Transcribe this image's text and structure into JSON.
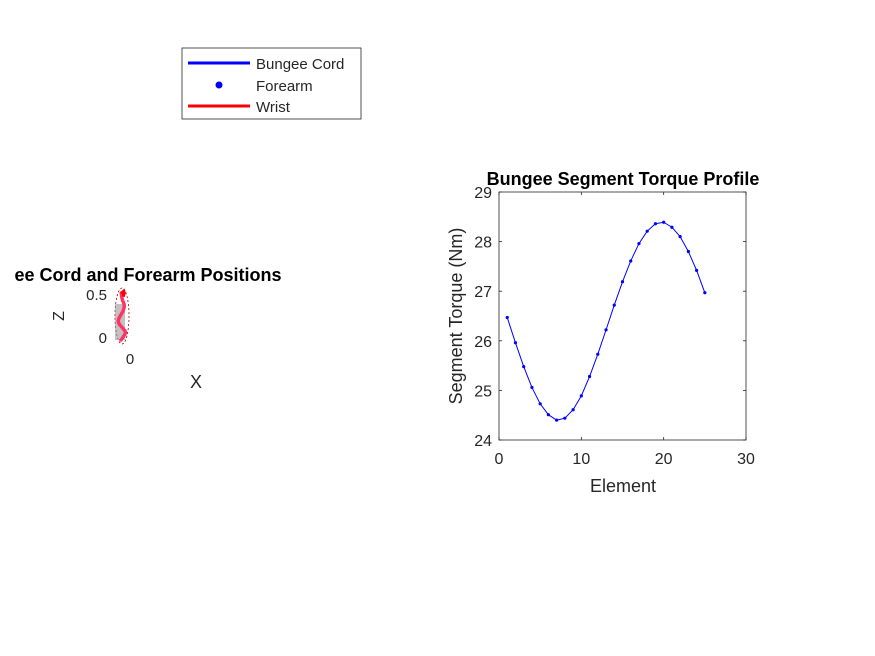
{
  "legend": {
    "items": [
      {
        "label": "Bungee Cord",
        "marker": "line",
        "color": "#0000ff"
      },
      {
        "label": "Forearm",
        "marker": "dot",
        "color": "#0000ff"
      },
      {
        "label": "Wrist",
        "marker": "line",
        "color": "#ff0000"
      }
    ]
  },
  "chart_data": [
    {
      "type": "line",
      "title": "ee Cord and Forearm Positions",
      "xlabel": "X",
      "ylabel": "Z",
      "zticks": [
        "0",
        "0.5"
      ],
      "xticks": [
        "0"
      ],
      "zlim": [
        -0.05,
        0.55
      ],
      "series": [
        {
          "name": "Bungee Cord",
          "color": "#0000ff",
          "x": [
            0.0,
            0.012,
            0.025,
            0.035,
            0.04,
            0.035,
            0.02,
            0.005,
            -0.01,
            -0.02,
            -0.025,
            -0.022,
            -0.015,
            -0.005,
            0.005,
            0.015,
            0.022,
            0.027,
            0.03,
            0.028,
            0.022,
            0.015,
            0.01,
            0.006,
            0.004,
            0.003
          ],
          "z": [
            0.0,
            0.02,
            0.04,
            0.06,
            0.08,
            0.1,
            0.12,
            0.14,
            0.16,
            0.18,
            0.2,
            0.22,
            0.24,
            0.26,
            0.28,
            0.3,
            0.32,
            0.34,
            0.36,
            0.38,
            0.4,
            0.42,
            0.44,
            0.46,
            0.48,
            0.5
          ]
        },
        {
          "name": "Wrist",
          "color": "#ff0000",
          "x": [
            0.02,
            0.025,
            0.03,
            0.025,
            0.015,
            0.005
          ],
          "z": [
            0.46,
            0.48,
            0.5,
            0.52,
            0.51,
            0.49
          ]
        }
      ]
    },
    {
      "type": "line",
      "title": "Bungee Segment Torque Profile",
      "xlabel": "Element",
      "ylabel": "Segment Torque (Nm)",
      "xlim": [
        0,
        30
      ],
      "ylim": [
        24,
        29
      ],
      "xticks": [
        0,
        10,
        20,
        30
      ],
      "yticks": [
        24,
        25,
        26,
        27,
        28,
        29
      ],
      "series": [
        {
          "color": "#0000ff",
          "x": [
            1,
            2,
            3,
            4,
            5,
            6,
            7,
            8,
            9,
            10,
            11,
            12,
            13,
            14,
            15,
            16,
            17,
            18,
            19,
            20,
            21,
            22,
            23,
            24,
            25
          ],
          "values": [
            26.47,
            25.96,
            25.48,
            25.06,
            24.73,
            24.51,
            24.4,
            24.44,
            24.61,
            24.89,
            25.28,
            25.73,
            26.22,
            26.72,
            27.19,
            27.61,
            27.96,
            28.21,
            28.36,
            28.39,
            28.29,
            28.1,
            27.8,
            27.42,
            26.97
          ]
        }
      ]
    }
  ]
}
